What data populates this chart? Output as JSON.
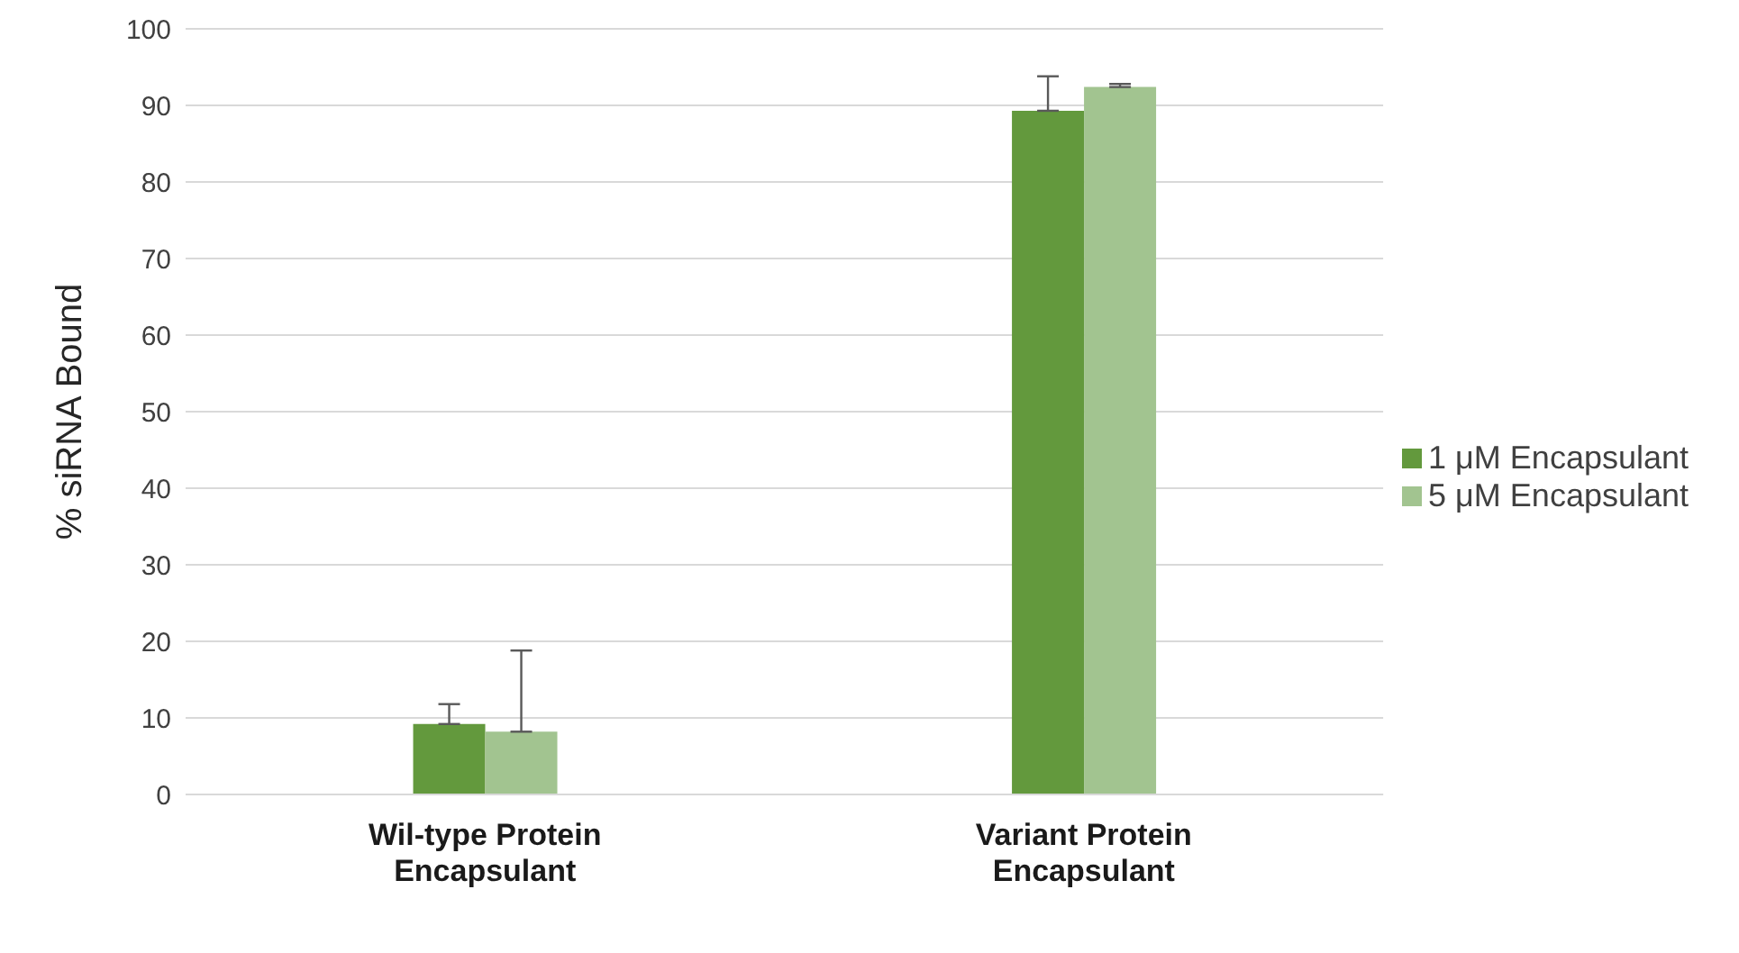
{
  "chart_data": {
    "type": "bar",
    "ylabel": "% siRNA Bound",
    "categories": [
      "Wil-type Protein Encapsulant",
      "Variant Protein Encapsulant"
    ],
    "series": [
      {
        "name": "1 μM Encapsulant",
        "color": "#63993d",
        "values": [
          9.2,
          89.3
        ],
        "errors": [
          [
            9.2,
            11.8
          ],
          [
            89.3,
            93.8
          ]
        ]
      },
      {
        "name": "5 μM Encapsulant",
        "color": "#a2c490",
        "values": [
          8.2,
          92.4
        ],
        "errors": [
          [
            8.2,
            18.8
          ],
          [
            92.4,
            92.8
          ]
        ]
      }
    ],
    "ylim": [
      0,
      100
    ],
    "yticks": [
      0,
      10,
      20,
      30,
      40,
      50,
      60,
      70,
      80,
      90,
      100
    ],
    "grid": "y",
    "legend": "right"
  }
}
